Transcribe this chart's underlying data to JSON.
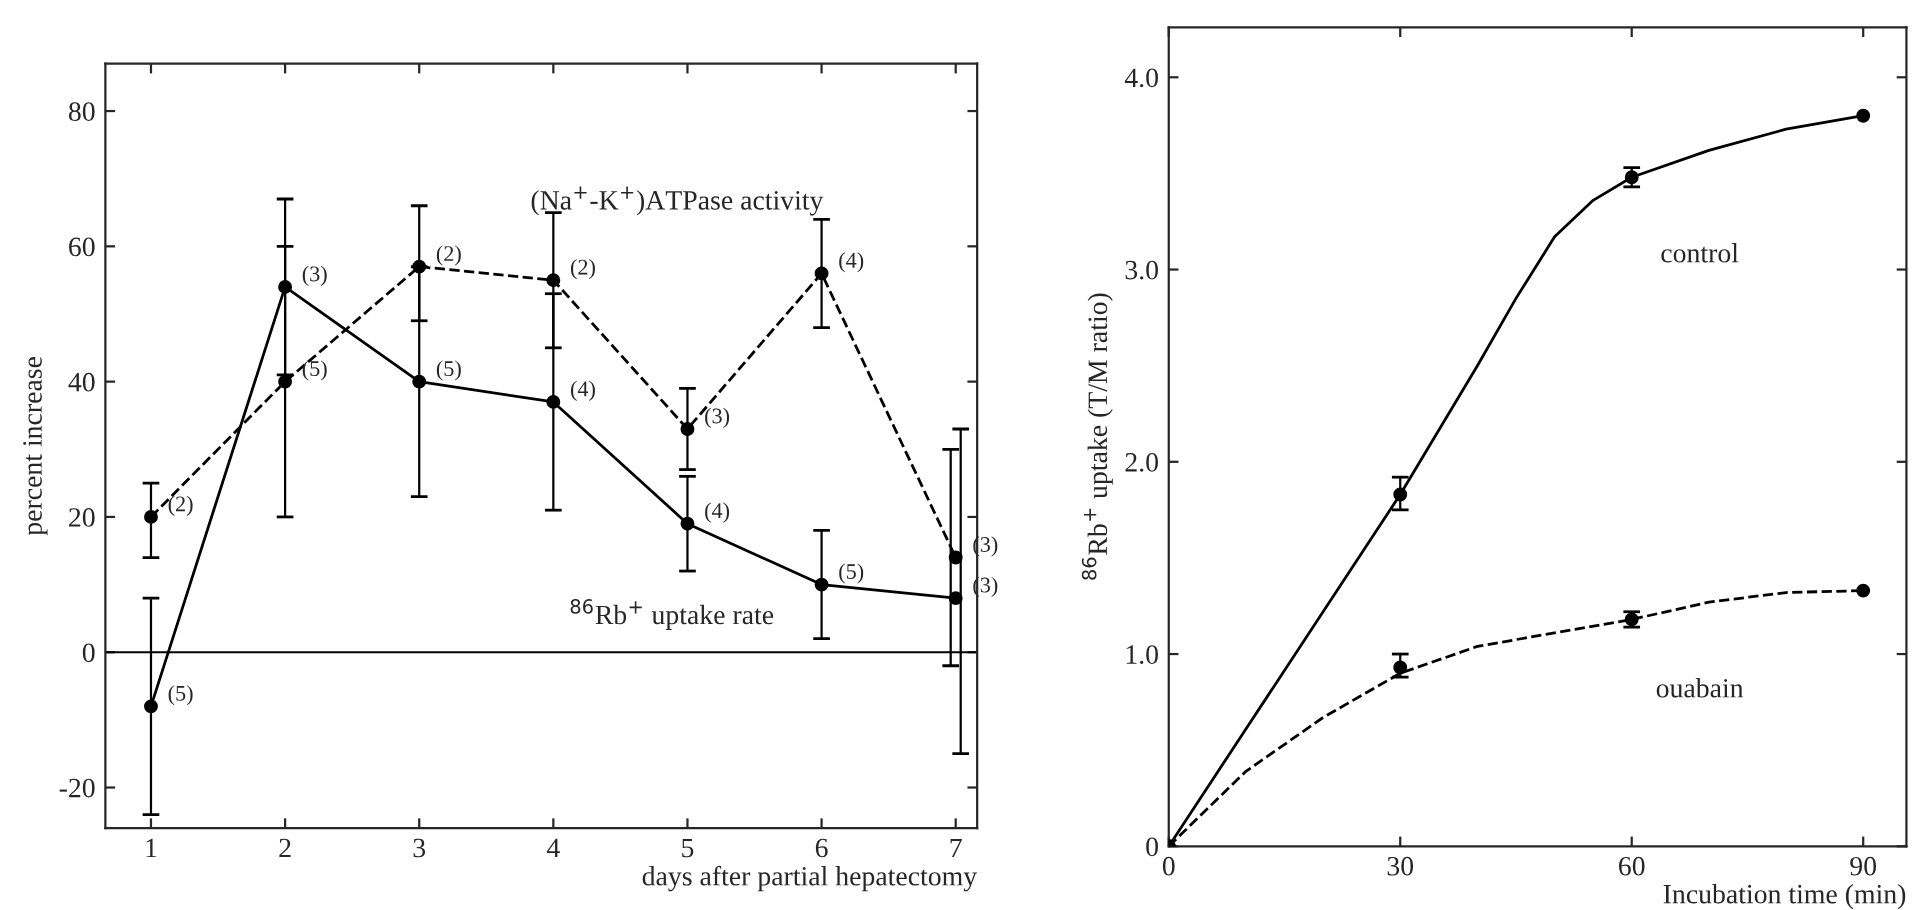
{
  "chart_data": [
    {
      "type": "line",
      "xlabel": "days after partial hepatectomy",
      "ylabel": "percent increase",
      "x": [
        1,
        2,
        3,
        4,
        5,
        6,
        7
      ],
      "series": [
        {
          "name": "(Na$^{+}$-K$^{+}$)ATPase activity",
          "color": "#000000",
          "line_style": "dashed",
          "marker": "circle",
          "values": [
            20,
            40,
            57,
            55,
            33,
            56,
            14
          ],
          "errors": [
            [
              14,
              25
            ],
            [
              20,
              60
            ],
            [
              49,
              66
            ],
            [
              45,
              65
            ],
            [
              27,
              39
            ],
            [
              48,
              64
            ],
            [
              -2,
              30
            ]
          ]
        },
        {
          "name": "$^{86}$Rb$^{+}$ uptake rate",
          "color": "#000000",
          "line_style": "solid",
          "marker": "circle",
          "values": [
            -8,
            54,
            40,
            37,
            19,
            10,
            8
          ],
          "errors": [
            [
              -24,
              8
            ],
            [
              41,
              67
            ],
            [
              23,
              57
            ],
            [
              21,
              53
            ],
            [
              12,
              26
            ],
            [
              2,
              18
            ],
            [
              -15,
              33
            ]
          ]
        }
      ],
      "xlim": [
        0.66,
        7.16
      ],
      "xticks": [
        1,
        2,
        3,
        4,
        5,
        6,
        7
      ],
      "ylim": [
        -26,
        87
      ],
      "yticks": [
        {
          "value": -20,
          "label": "-20"
        },
        0,
        20,
        40,
        60,
        80
      ],
      "ref_lines": [
        {
          "axis": "y",
          "value": 0,
          "color": "#000000"
        }
      ],
      "annotations": [
        {
          "text": "(2)",
          "x": 1,
          "y": 20
        },
        {
          "text": "(5)",
          "x": 2,
          "y": 40
        },
        {
          "text": "(2)",
          "x": 3,
          "y": 57
        },
        {
          "text": "(2)",
          "x": 4,
          "y": 55
        },
        {
          "text": "(3)",
          "x": 5,
          "y": 33
        },
        {
          "text": "(4)",
          "x": 6,
          "y": 56
        },
        {
          "text": "(3)",
          "x": 7,
          "y": 14
        },
        {
          "text": "(5)",
          "x": 1,
          "y": -8
        },
        {
          "text": "(3)",
          "x": 2,
          "y": 54
        },
        {
          "text": "(5)",
          "x": 3,
          "y": 40
        },
        {
          "text": "(4)",
          "x": 4,
          "y": 37
        },
        {
          "text": "(4)",
          "x": 5,
          "y": 19
        },
        {
          "text": "(5)",
          "x": 6,
          "y": 10
        },
        {
          "text": "(3)",
          "x": 7,
          "y": 8
        }
      ],
      "legend": false,
      "grid": false
    },
    {
      "type": "line",
      "xlabel": "Incubation time (min)",
      "ylabel": "$^{86}$Rb$^{+}$ uptake (T/M ratio)",
      "x": [
        0,
        30,
        60,
        90
      ],
      "series": [
        {
          "name": "control",
          "type": "line",
          "color": "#000000",
          "line_style": "solid",
          "x": [
            0,
            10,
            20,
            30,
            40,
            45,
            50,
            55,
            60,
            70,
            80,
            90
          ],
          "values": [
            0,
            0.61,
            1.22,
            1.83,
            2.5,
            2.85,
            3.17,
            3.36,
            3.48,
            3.62,
            3.73,
            3.8
          ]
        },
        {
          "name": "ouabain",
          "type": "line",
          "color": "#000000",
          "line_style": "dashed",
          "x": [
            0,
            10,
            20,
            30,
            40,
            50,
            60,
            70,
            80,
            90
          ],
          "values": [
            0,
            0.39,
            0.67,
            0.9,
            1.04,
            1.11,
            1.18,
            1.27,
            1.32,
            1.33
          ]
        },
        {
          "type": "scatter",
          "color": "#000000",
          "marker": "circle",
          "values": [
            0,
            1.83,
            3.48,
            3.8
          ],
          "errors": [
            null,
            [
              1.75,
              1.92
            ],
            [
              3.43,
              3.53
            ],
            null
          ]
        },
        {
          "type": "scatter",
          "color": "#000000",
          "marker": "circle",
          "values": [
            0,
            0.93,
            1.18,
            1.33
          ],
          "errors": [
            null,
            [
              0.88,
              1.0
            ],
            [
              1.14,
              1.22
            ],
            null
          ]
        }
      ],
      "xlim": [
        0,
        95.6
      ],
      "xticks": [
        0,
        30,
        60,
        90
      ],
      "ylim": [
        0,
        4.26
      ],
      "yticks": [
        0,
        {
          "value": 1,
          "label": "1.0"
        },
        {
          "value": 2,
          "label": "2.0"
        },
        {
          "value": 3,
          "label": "3.0"
        },
        {
          "value": 4,
          "label": "4.0"
        }
      ],
      "legend": false,
      "grid": false
    }
  ]
}
